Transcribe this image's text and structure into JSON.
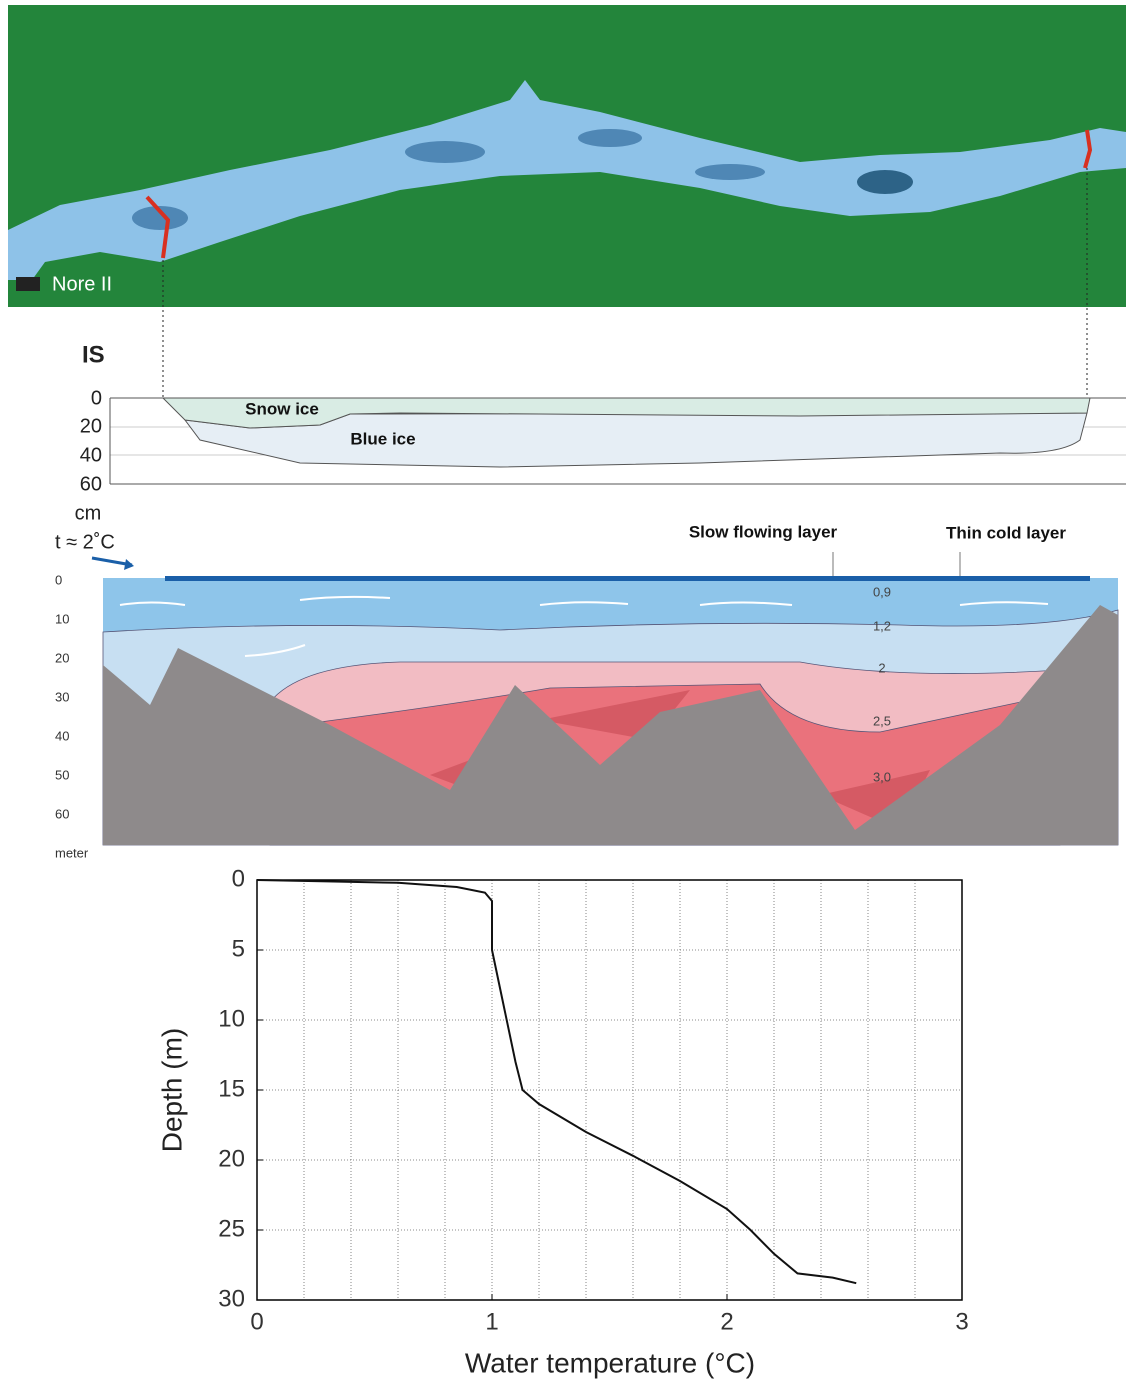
{
  "map": {
    "label": "Nore II"
  },
  "ice_section": {
    "title": "IS",
    "yticks": [
      0,
      20,
      40,
      60
    ],
    "unit": "cm",
    "layers": [
      "Snow ice",
      "Blue ice"
    ]
  },
  "water_section": {
    "temperature_note": "t ≈ 2˚C",
    "labels": [
      "Slow flowing layer",
      "Thin cold layer"
    ],
    "yticks": [
      0,
      10,
      20,
      30,
      40,
      50,
      60
    ],
    "unit": "meter",
    "isotherms": [
      "0,9",
      "1,2",
      "2",
      "2,5",
      "3,0"
    ]
  },
  "chart_data": {
    "type": "line",
    "x_label": "Water temperature (°C)",
    "y_label": "Depth (m)",
    "x": [
      0,
      0.3,
      0.6,
      0.85,
      0.97,
      1.0,
      1.0,
      1.05,
      1.1,
      1.13,
      1.2,
      1.4,
      1.6,
      1.8,
      2.0,
      2.1,
      2.2,
      2.3,
      2.45,
      2.55
    ],
    "values": [
      0,
      0.1,
      0.2,
      0.5,
      0.9,
      1.5,
      5,
      9,
      13,
      15,
      16,
      18,
      19.7,
      21.5,
      23.5,
      25,
      26.7,
      28.1,
      28.4,
      28.8
    ],
    "color": "#111111",
    "xlim": [
      0,
      3
    ],
    "ylim": [
      0,
      30
    ],
    "y_inverted": true,
    "xticks": [
      0,
      1,
      2,
      3
    ],
    "yticks": [
      0,
      5,
      10,
      15,
      20,
      25,
      30
    ],
    "x_minor_grid": [
      0.2,
      0.4,
      0.6,
      0.8,
      1.2,
      1.4,
      1.6,
      1.8,
      2.2,
      2.4,
      2.6,
      2.8
    ],
    "grid": true
  }
}
